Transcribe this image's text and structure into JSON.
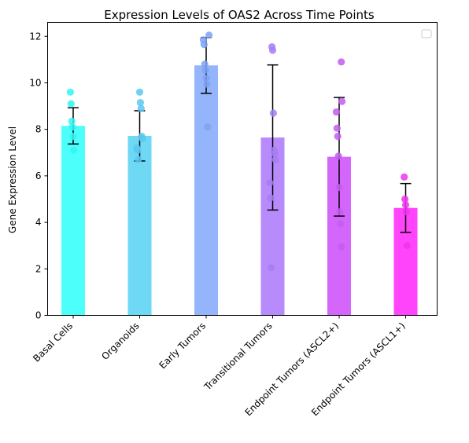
{
  "chart_data": {
    "type": "bar",
    "title": "Expression Levels of OAS2 Across Time Points",
    "xlabel": "",
    "ylabel": "Gene Expression Level",
    "ylim": [
      0,
      12.6
    ],
    "yticks": [
      0,
      2,
      4,
      6,
      8,
      10,
      12
    ],
    "categories": [
      "Basal Cells",
      "Organoids",
      "Early Tumors",
      "Transitional Tumors",
      "Endpoint Tumors (ASCL2+)",
      "Endpoint Tumors (ASCL1+)"
    ],
    "colors": [
      "#4dfffb",
      "#6fd8f5",
      "#94b4fb",
      "#b88bfd",
      "#d466fb",
      "#ff44fb"
    ],
    "point_colors": [
      "#33f5f5",
      "#5ac8f0",
      "#7ea3f5",
      "#a57ef2",
      "#c15ef0",
      "#ee33ee"
    ],
    "values": [
      8.15,
      7.72,
      10.75,
      7.65,
      6.82,
      4.62
    ],
    "error": [
      0.78,
      1.08,
      1.2,
      3.12,
      2.55,
      1.05
    ],
    "points": [
      [
        9.6,
        9.1,
        8.35,
        8.1,
        7.7,
        7.1
      ],
      [
        9.6,
        9.15,
        8.9,
        7.7,
        7.6,
        7.2,
        7.1,
        6.7
      ],
      [
        12.05,
        11.85,
        11.65,
        10.8,
        10.55,
        10.2,
        9.95,
        8.1
      ],
      [
        11.55,
        11.4,
        8.7,
        7.1,
        6.95,
        6.7,
        5.7,
        5.05,
        2.05
      ],
      [
        10.9,
        9.2,
        8.75,
        8.05,
        7.7,
        6.85,
        5.5,
        4.45,
        3.95,
        2.95
      ],
      [
        5.95,
        5.0,
        4.75,
        4.45,
        3.0
      ]
    ],
    "legend": {
      "entries": [],
      "placement": "top-right"
    },
    "grid": false
  }
}
